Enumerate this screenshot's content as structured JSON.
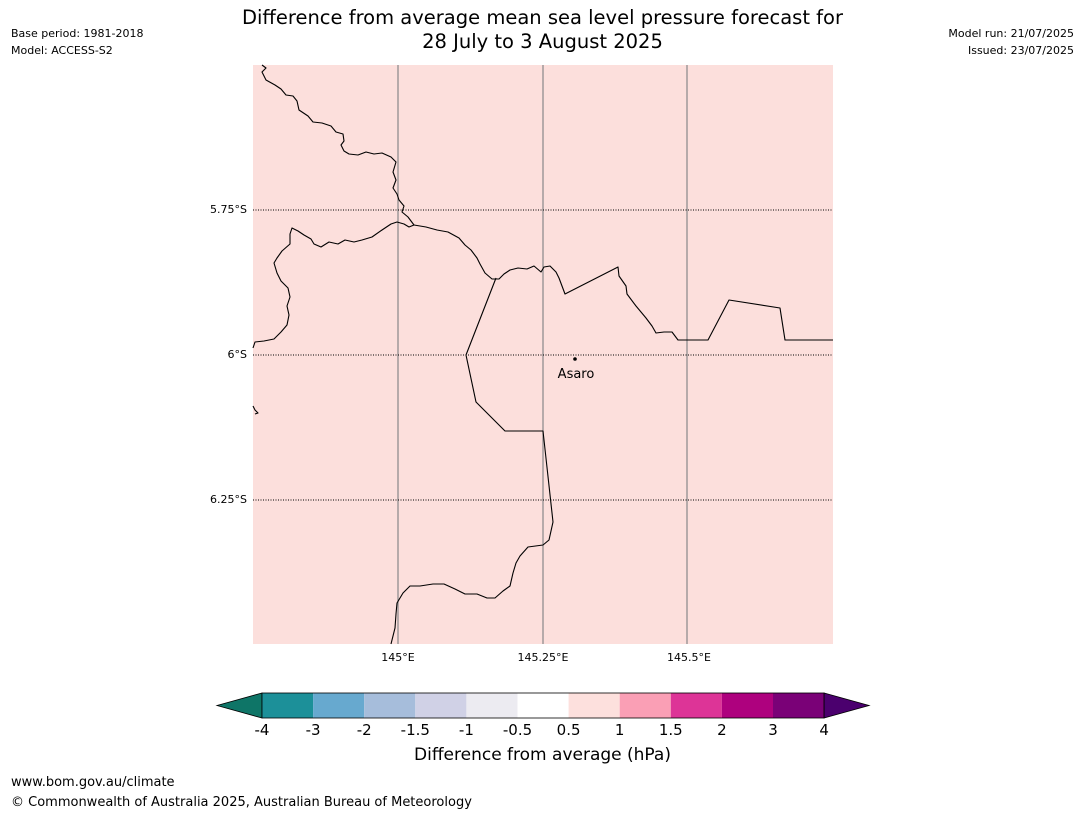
{
  "header": {
    "title_line1": "Difference from average mean sea level pressure forecast for",
    "title_line2": "28 July to 3 August 2025",
    "base_period": "Base period: 1981-2018",
    "model": "Model: ACCESS-S2",
    "model_run": "Model run: 21/07/2025",
    "issued": "Issued: 23/07/2025"
  },
  "map": {
    "region_fill": "#fcdfdc",
    "lat_labels": [
      "5.75°S",
      "6°S",
      "6.25°S"
    ],
    "lon_labels": [
      "145°E",
      "145.25°E",
      "145.5°E"
    ],
    "place": {
      "name": "Asaro"
    }
  },
  "colorbar": {
    "label": "Difference from average (hPa)",
    "ticks": [
      "-4",
      "-3",
      "-2",
      "-1.5",
      "-1",
      "-0.5",
      "0.5",
      "1",
      "1.5",
      "2",
      "3",
      "4"
    ],
    "colors": [
      "#0e7567",
      "#1c9099",
      "#67a9cf",
      "#a6bddb",
      "#d0d1e6",
      "#ecebf1",
      "#ffffff",
      "#fde0dd",
      "#fa9fb5",
      "#dd3497",
      "#ae017e",
      "#7a0177",
      "#4b006e"
    ]
  },
  "footer": {
    "url": "www.bom.gov.au/climate",
    "copyright": "© Commonwealth of Australia 2025, Australian Bureau of Meteorology"
  }
}
